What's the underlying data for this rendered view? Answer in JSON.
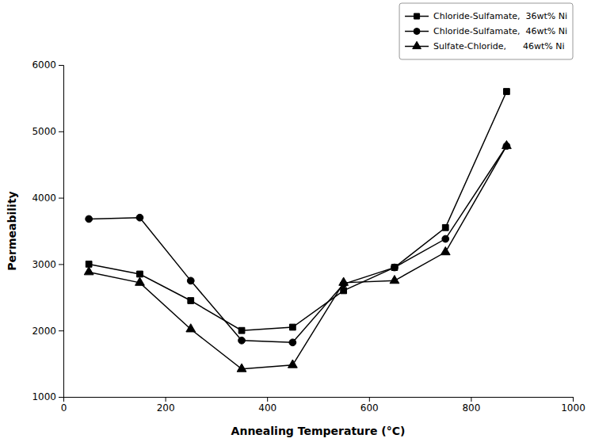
{
  "chart_data": {
    "type": "line",
    "xlabel": "Annealing Temperature (°C)",
    "ylabel": "Permeability",
    "x": [
      50,
      150,
      250,
      350,
      450,
      550,
      650,
      750,
      870
    ],
    "series": [
      {
        "name": "Chloride-Sulfamate,  36wt% Ni",
        "marker": "square",
        "values": [
          3000,
          2850,
          2450,
          2000,
          2050,
          2600,
          2950,
          3550,
          5600
        ]
      },
      {
        "name": "Chloride-Sulfamate,  46wt% Ni",
        "marker": "circle",
        "values": [
          3680,
          3700,
          2750,
          1850,
          1820,
          2700,
          2950,
          3380,
          4780
        ]
      },
      {
        "name": "Sulfate-Chloride,      46wt% Ni",
        "marker": "triangle",
        "values": [
          2880,
          2720,
          2020,
          1420,
          1480,
          2720,
          2750,
          3180,
          4780
        ]
      }
    ],
    "color": "black",
    "xlim": [
      0,
      1000
    ],
    "ylim": [
      1000,
      6000
    ],
    "xticks": [
      0,
      200,
      400,
      600,
      800,
      1000
    ],
    "yticks": [
      1000,
      2000,
      3000,
      4000,
      5000,
      6000
    ],
    "legend": "upper right",
    "grid": false
  }
}
